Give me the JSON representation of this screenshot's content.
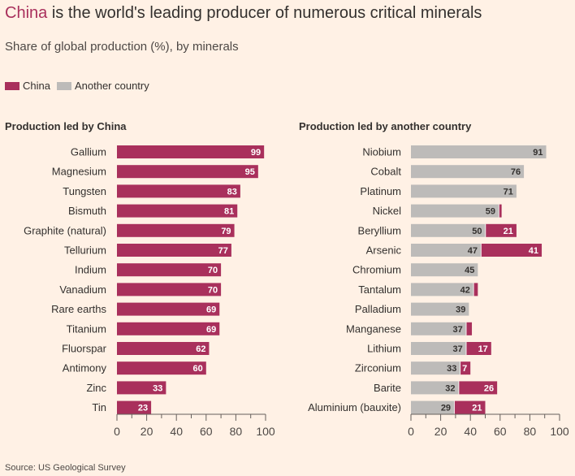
{
  "header": {
    "title_highlight": "China",
    "title_rest": " is the world's leading producer of numerous critical minerals",
    "subtitle": "Share of global production (%), by minerals"
  },
  "legend": {
    "china": "China",
    "other": "Another country"
  },
  "colors": {
    "china": "#a9305c",
    "other": "#bdbbb9",
    "background": "#fff1e5",
    "text": "#33302e"
  },
  "source": "Source: US Geological Survey",
  "chart_data": [
    {
      "type": "bar",
      "orientation": "horizontal",
      "title": "Production led by China",
      "categories": [
        "Gallium",
        "Magnesium",
        "Tungsten",
        "Bismuth",
        "Graphite (natural)",
        "Tellurium",
        "Indium",
        "Vanadium",
        "Rare earths",
        "Titanium",
        "Fluorspar",
        "Antimony",
        "Zinc",
        "Tin"
      ],
      "series": [
        {
          "name": "China",
          "values": [
            99,
            95,
            83,
            81,
            79,
            77,
            70,
            70,
            69,
            69,
            62,
            60,
            33,
            23
          ]
        }
      ],
      "xlim": [
        0,
        100
      ],
      "xticks": [
        "0",
        "20",
        "40",
        "60",
        "80",
        "100"
      ]
    },
    {
      "type": "bar",
      "orientation": "horizontal",
      "stacked": true,
      "title": "Production led by another country",
      "categories": [
        "Niobium",
        "Cobalt",
        "Platinum",
        "Nickel",
        "Beryllium",
        "Arsenic",
        "Chromium",
        "Tantalum",
        "Palladium",
        "Manganese",
        "Lithium",
        "Zirconium",
        "Barite",
        "Aluminium (bauxite)"
      ],
      "series": [
        {
          "name": "Another country",
          "values": [
            91,
            76,
            71,
            59,
            50,
            47,
            45,
            42,
            39,
            37,
            37,
            33,
            32,
            29
          ]
        },
        {
          "name": "China",
          "values": [
            0,
            0,
            0,
            2,
            21,
            41,
            0,
            3,
            0,
            4,
            17,
            7,
            26,
            21
          ]
        }
      ],
      "china_labels": [
        "",
        "",
        "",
        "",
        "21",
        "41",
        "",
        "",
        "",
        "",
        "17",
        "7",
        "26",
        "21"
      ],
      "xlim": [
        0,
        100
      ],
      "xticks": [
        "0",
        "20",
        "40",
        "60",
        "80",
        "100"
      ]
    }
  ]
}
